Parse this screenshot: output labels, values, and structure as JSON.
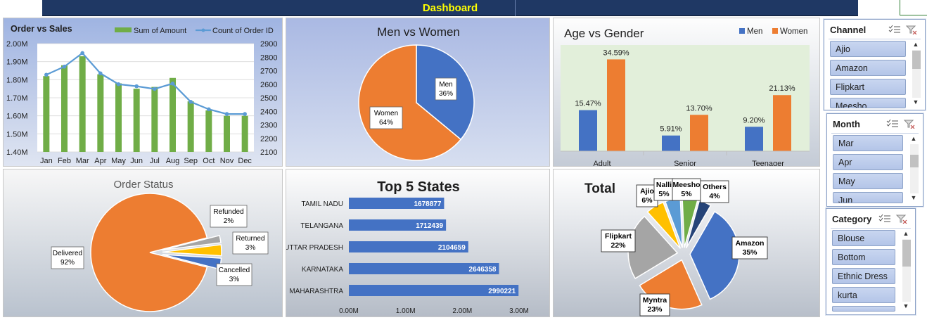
{
  "header": {
    "title": "Dashboard"
  },
  "colors": {
    "green": "#70ad47",
    "line": "#5b9bd5",
    "blue": "#4472c4",
    "orange": "#ed7d31",
    "gray": "#a5a5a5",
    "yellow": "#ffc000",
    "lightblue": "#5b9bd5",
    "darkgreen": "#70ad47",
    "navy": "#264478"
  },
  "chart_data": [
    {
      "id": "order_vs_sales",
      "type": "bar",
      "title": "Order vs Sales",
      "categories": [
        "Jan",
        "Feb",
        "Mar",
        "Apr",
        "May",
        "Jun",
        "Jul",
        "Aug",
        "Sep",
        "Oct",
        "Nov",
        "Dec"
      ],
      "series": [
        {
          "name": "Sum of Amount",
          "type": "bar",
          "axis": "left",
          "values": [
            1.82,
            1.88,
            1.93,
            1.83,
            1.78,
            1.75,
            1.76,
            1.81,
            1.68,
            1.63,
            1.6,
            1.6
          ]
        },
        {
          "name": "Count of Order ID",
          "type": "line",
          "axis": "right",
          "values": [
            2670,
            2730,
            2830,
            2680,
            2600,
            2585,
            2565,
            2605,
            2470,
            2415,
            2380,
            2380
          ]
        }
      ],
      "left_axis": {
        "min": 1.4,
        "max": 2.0,
        "ticks": [
          "1.40M",
          "1.50M",
          "1.60M",
          "1.70M",
          "1.80M",
          "1.90M",
          "2.00M"
        ]
      },
      "right_axis": {
        "min": 2100,
        "max": 2900,
        "ticks": [
          "2100",
          "2200",
          "2300",
          "2400",
          "2500",
          "2600",
          "2700",
          "2800",
          "2900"
        ]
      },
      "legend": "top-right"
    },
    {
      "id": "men_vs_women",
      "type": "pie",
      "title": "Men vs Women",
      "slices": [
        {
          "name": "Men",
          "value": 36,
          "label": "36%"
        },
        {
          "name": "Women",
          "value": 64,
          "label": "64%"
        }
      ]
    },
    {
      "id": "age_vs_gender",
      "type": "bar",
      "title": "Age vs Gender",
      "categories": [
        "Adult",
        "Senior",
        "Teenager"
      ],
      "series": [
        {
          "name": "Men",
          "values": [
            15.47,
            5.91,
            9.2
          ],
          "labels": [
            "15.47%",
            "5.91%",
            "9.20%"
          ]
        },
        {
          "name": "Women",
          "values": [
            34.59,
            13.7,
            21.13
          ],
          "labels": [
            "34.59%",
            "13.70%",
            "21.13%"
          ]
        }
      ],
      "ylim": [
        0,
        40
      ],
      "legend": "top-right"
    },
    {
      "id": "order_status",
      "type": "pie",
      "title": "Order Status",
      "slices": [
        {
          "name": "Delivered",
          "value": 92,
          "label": "92%"
        },
        {
          "name": "Refunded",
          "value": 2,
          "label": "2%"
        },
        {
          "name": "Returned",
          "value": 3,
          "label": "3%"
        },
        {
          "name": "Cancelled",
          "value": 3,
          "label": "3%"
        }
      ]
    },
    {
      "id": "top5_states",
      "type": "bar",
      "orientation": "horizontal",
      "title": "Top 5 States",
      "categories": [
        "TAMIL NADU",
        "TELANGANA",
        "UTTAR PRADESH",
        "KARNATAKA",
        "MAHARASHTRA"
      ],
      "values": [
        1678877,
        1712439,
        2104659,
        2646358,
        2990221
      ],
      "labels": [
        "1678877",
        "1712439",
        "2104659",
        "2646358",
        "2990221"
      ],
      "xlim": [
        0,
        3000000
      ],
      "ticks": [
        "0.00M",
        "1.00M",
        "2.00M",
        "3.00M"
      ]
    },
    {
      "id": "total",
      "type": "pie",
      "title": "Total",
      "slices": [
        {
          "name": "Amazon",
          "value": 35,
          "label": "35%"
        },
        {
          "name": "Myntra",
          "value": 23,
          "label": "23%"
        },
        {
          "name": "Flipkart",
          "value": 22,
          "label": "22%"
        },
        {
          "name": "Ajio",
          "value": 6,
          "label": "6%"
        },
        {
          "name": "Nalli",
          "value": 5,
          "label": "5%"
        },
        {
          "name": "Meesho",
          "value": 5,
          "label": "5%"
        },
        {
          "name": "Others",
          "value": 4,
          "label": "4%"
        }
      ]
    }
  ],
  "slicers": {
    "channel": {
      "title": "Channel",
      "items": [
        "Ajio",
        "Amazon",
        "Flipkart",
        "Meesho"
      ]
    },
    "month": {
      "title": "Month",
      "items": [
        "Mar",
        "Apr",
        "May",
        "Jun"
      ]
    },
    "category": {
      "title": "Category",
      "items": [
        "Blouse",
        "Bottom",
        "Ethnic Dress",
        "kurta"
      ]
    }
  }
}
